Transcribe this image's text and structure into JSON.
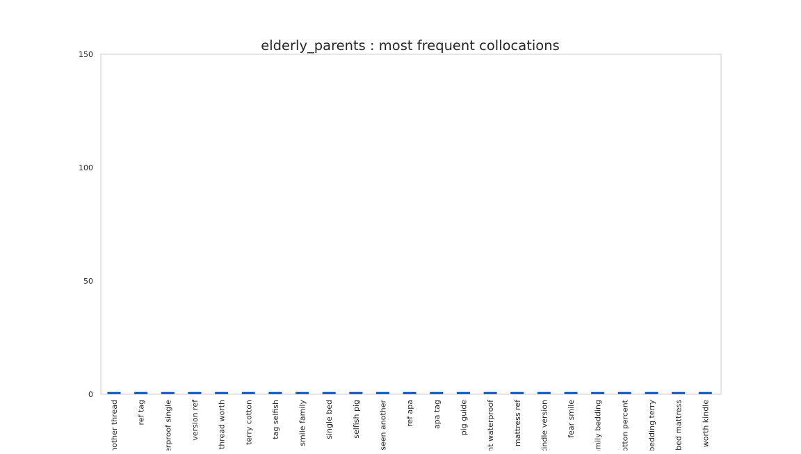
{
  "chart_data": {
    "type": "bar",
    "title": "elderly_parents : most frequent collocations",
    "xlabel": "",
    "ylabel": "",
    "categories": [
      "another thread",
      "ref tag",
      "terproof single",
      "version ref",
      "thread worth",
      "terry cotton",
      "tag selfish",
      "smile family",
      "single bed",
      "selfish pig",
      "seen another",
      "ref apa",
      "apa tag",
      "pig guide",
      "ent waterproof",
      "mattress ref",
      "kindle version",
      "fear smile",
      "family bedding",
      "cotton percent",
      "bedding terry",
      "bed mattress",
      "worth kindle"
    ],
    "values": [
      1,
      1,
      1,
      1,
      1,
      1,
      1,
      1,
      1,
      1,
      1,
      1,
      1,
      1,
      1,
      1,
      1,
      1,
      1,
      1,
      1,
      1,
      1
    ],
    "ylim": [
      0,
      150
    ],
    "yticks": [
      0,
      50,
      100,
      150
    ],
    "grid": false,
    "bar_color": "#1f5fbf",
    "frame_color": "#cccccc"
  }
}
